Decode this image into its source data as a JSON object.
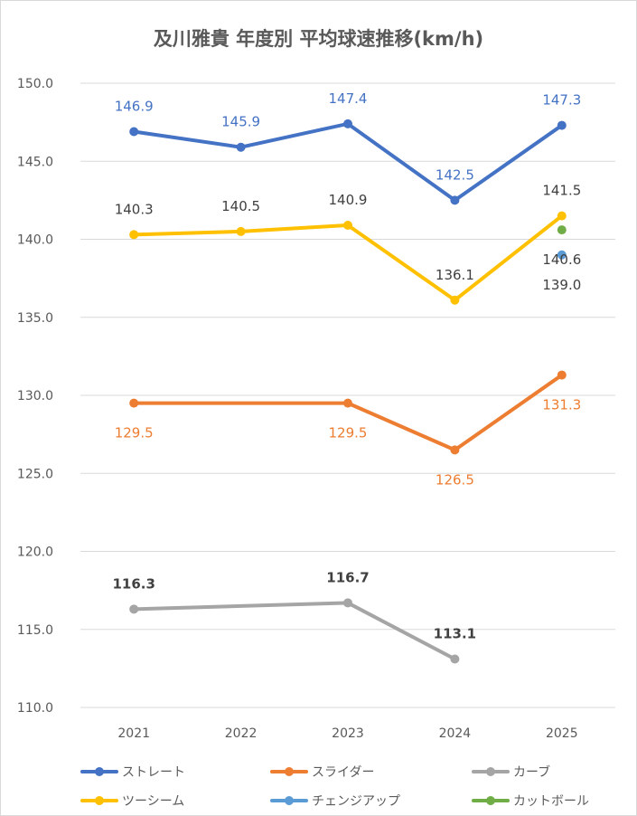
{
  "chart_data": {
    "type": "line",
    "title": "及川雅貴 年度別 平均球速推移(km/h)",
    "xlabel": "",
    "ylabel": "",
    "categories": [
      "2021",
      "2022",
      "2023",
      "2024",
      "2025"
    ],
    "ylim": [
      110.0,
      150.0
    ],
    "ytick_step": 5,
    "y_tick_labels": [
      "110.0",
      "115.0",
      "120.0",
      "125.0",
      "130.0",
      "135.0",
      "140.0",
      "145.0",
      "150.0"
    ],
    "grid": "horizontal",
    "legend_position": "bottom",
    "series": [
      {
        "name": "ストレート",
        "color": "#4472C4",
        "values": [
          146.9,
          145.9,
          147.4,
          142.5,
          147.3
        ],
        "labels": [
          "146.9",
          "145.9",
          "147.4",
          "142.5",
          "147.3"
        ],
        "label_color": "#4472C4",
        "label_pos": "above",
        "label_bold": false
      },
      {
        "name": "スライダー",
        "color": "#ED7D31",
        "values": [
          129.5,
          null,
          129.5,
          126.5,
          131.3
        ],
        "labels": [
          "129.5",
          null,
          "129.5",
          "126.5",
          "131.3"
        ],
        "label_color": "#ED7D31",
        "label_pos": "below",
        "label_bold": false
      },
      {
        "name": "カーブ",
        "color": "#A5A5A5",
        "values": [
          116.3,
          null,
          116.7,
          113.1,
          null
        ],
        "labels": [
          "116.3",
          null,
          "116.7",
          "113.1",
          null
        ],
        "label_color": "#404040",
        "label_pos": "above",
        "label_bold": true
      },
      {
        "name": "ツーシーム",
        "color": "#FFC000",
        "values": [
          140.3,
          140.5,
          140.9,
          136.1,
          141.5
        ],
        "labels": [
          "140.3",
          "140.5",
          "140.9",
          "136.1",
          "141.5"
        ],
        "label_color": "#404040",
        "label_pos": "above",
        "label_bold": false
      },
      {
        "name": "チェンジアップ",
        "color": "#5B9BD5",
        "values": [
          null,
          null,
          null,
          null,
          139.0
        ],
        "labels": [
          null,
          null,
          null,
          null,
          "139.0"
        ],
        "label_color": "#404040",
        "label_pos": "below",
        "label_bold": false
      },
      {
        "name": "カットボール",
        "color": "#70AD47",
        "values": [
          null,
          null,
          null,
          null,
          140.6
        ],
        "labels": [
          null,
          null,
          null,
          null,
          "140.6"
        ],
        "label_color": "#404040",
        "label_pos": "below",
        "label_bold": false
      }
    ]
  }
}
